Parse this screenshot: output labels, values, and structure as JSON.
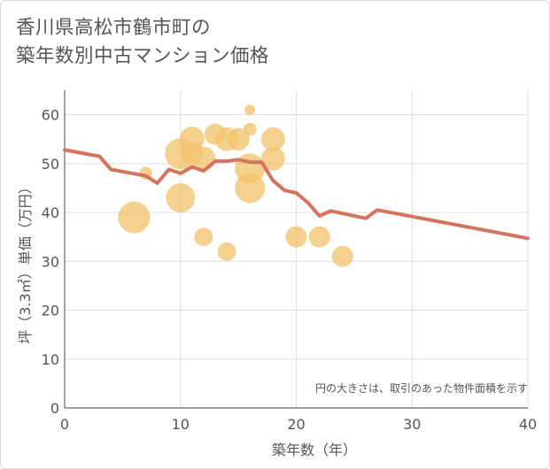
{
  "title_line1": "香川県高松市鶴市町の",
  "title_line2": "築年数別中古マンション価格",
  "chart_data": {
    "type": "scatter",
    "xlabel": "築年数（年）",
    "ylabel": "坪（3.3㎡）単価（万円）",
    "xlim": [
      0,
      40
    ],
    "ylim": [
      0,
      65
    ],
    "xticks": [
      0,
      10,
      20,
      30,
      40
    ],
    "yticks": [
      0,
      10,
      20,
      30,
      40,
      50,
      60
    ],
    "grid": true,
    "note": "円の大きさは、取引のあった物件面積を示す",
    "colors": {
      "bubble": "#f2c46f",
      "line": "#d4735e",
      "grid": "#dddddd",
      "text": "#555555"
    },
    "bubbles": [
      {
        "x": 6,
        "y": 39,
        "size": 90
      },
      {
        "x": 7,
        "y": 48,
        "size": 15
      },
      {
        "x": 10,
        "y": 52,
        "size": 85
      },
      {
        "x": 10,
        "y": 43,
        "size": 75
      },
      {
        "x": 11,
        "y": 55,
        "size": 55
      },
      {
        "x": 11,
        "y": 52,
        "size": 45
      },
      {
        "x": 12,
        "y": 51,
        "size": 50
      },
      {
        "x": 12,
        "y": 35,
        "size": 30
      },
      {
        "x": 13,
        "y": 56,
        "size": 40
      },
      {
        "x": 14,
        "y": 55,
        "size": 50
      },
      {
        "x": 14,
        "y": 32,
        "size": 30
      },
      {
        "x": 15,
        "y": 55,
        "size": 45
      },
      {
        "x": 16,
        "y": 49,
        "size": 80
      },
      {
        "x": 16,
        "y": 45,
        "size": 80
      },
      {
        "x": 16,
        "y": 57,
        "size": 15
      },
      {
        "x": 16,
        "y": 61,
        "size": 10
      },
      {
        "x": 18,
        "y": 55,
        "size": 50
      },
      {
        "x": 18,
        "y": 51,
        "size": 50
      },
      {
        "x": 20,
        "y": 35,
        "size": 40
      },
      {
        "x": 22,
        "y": 35,
        "size": 40
      },
      {
        "x": 24,
        "y": 31,
        "size": 40
      }
    ],
    "series": [
      {
        "x": [
          0,
          3,
          4,
          7,
          8,
          9,
          10,
          11,
          12,
          13,
          14,
          15,
          16,
          17,
          18,
          19,
          20,
          21,
          22,
          23,
          24,
          25,
          26,
          27,
          40
        ],
        "values": [
          52.8,
          51.5,
          48.8,
          47.5,
          46,
          48.8,
          48,
          49.3,
          48.5,
          50.5,
          50.5,
          50.8,
          50.3,
          50.3,
          46.5,
          44.5,
          44,
          42,
          39.3,
          40.3,
          39.8,
          39.3,
          38.8,
          40.5,
          34.7
        ]
      }
    ]
  }
}
